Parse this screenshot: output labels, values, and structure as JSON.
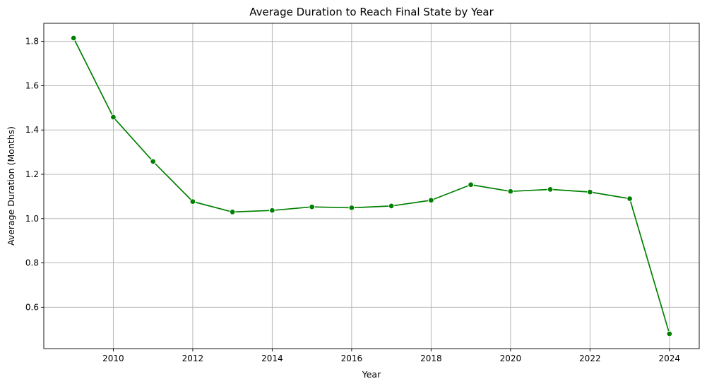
{
  "chart_data": {
    "type": "line",
    "title": "Average Duration to Reach Final State by Year",
    "xlabel": "Year",
    "ylabel": "Average Duration (Months)",
    "x": [
      2009,
      2010,
      2011,
      2012,
      2013,
      2014,
      2015,
      2016,
      2017,
      2018,
      2019,
      2020,
      2021,
      2022,
      2023,
      2024
    ],
    "series": [
      {
        "name": "",
        "color": "#008000",
        "marker": "circle",
        "values": [
          1.815,
          1.458,
          1.258,
          1.077,
          1.03,
          1.037,
          1.053,
          1.049,
          1.057,
          1.083,
          1.153,
          1.123,
          1.132,
          1.12,
          1.09,
          0.48
        ]
      }
    ],
    "xlim": [
      2008.25,
      2024.75
    ],
    "ylim": [
      0.4133,
      1.8817
    ],
    "xticks": [
      2010,
      2012,
      2014,
      2016,
      2018,
      2020,
      2022,
      2024
    ],
    "yticks": [
      0.6,
      0.8,
      1.0,
      1.2,
      1.4,
      1.6,
      1.8
    ],
    "xtick_labels": [
      "2010",
      "2012",
      "2014",
      "2016",
      "2018",
      "2020",
      "2022",
      "2024"
    ],
    "ytick_labels": [
      "0.6",
      "0.8",
      "1.0",
      "1.2",
      "1.4",
      "1.6",
      "1.8"
    ],
    "grid": true,
    "legend": "none"
  }
}
